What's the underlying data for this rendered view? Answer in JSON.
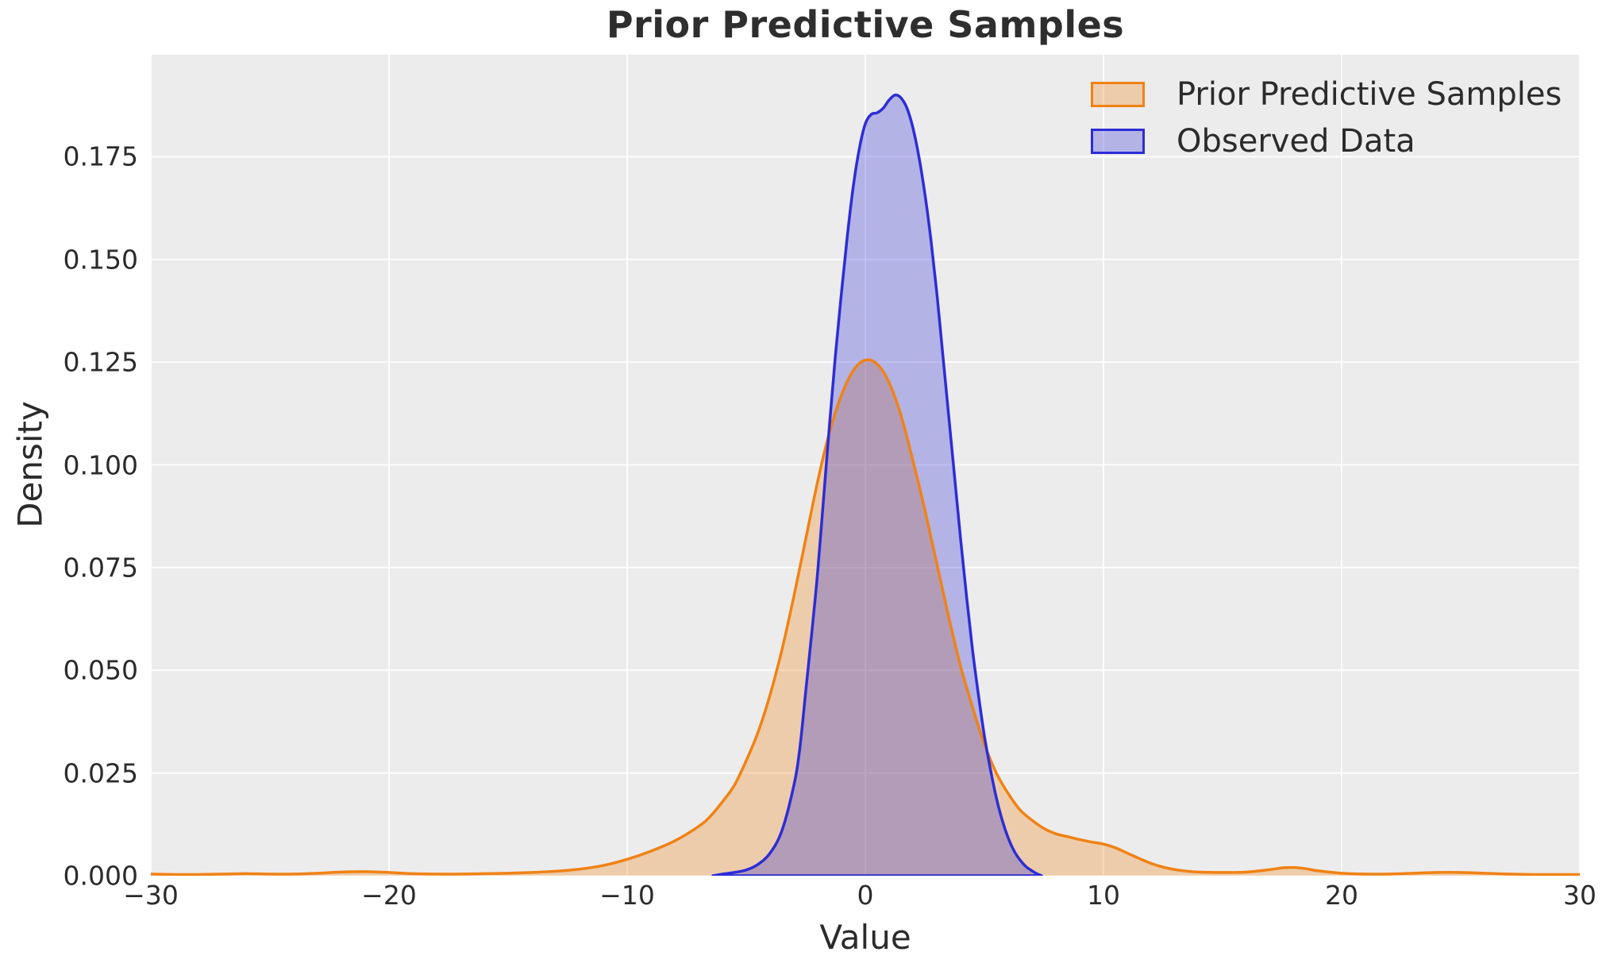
{
  "chart_data": {
    "type": "area",
    "kind": "kde-density-overlay",
    "title": "Prior Predictive Samples",
    "xlabel": "Value",
    "ylabel": "Density",
    "xlim": [
      -30,
      30
    ],
    "ylim": [
      0,
      0.2
    ],
    "grid": true,
    "legend_position": "upper right",
    "colors": {
      "figure_background": "#ffffff",
      "axes_background": "#ececec",
      "gridline": "#ffffff",
      "text": "#2b2b2b"
    },
    "x_ticks": {
      "values": [
        -30,
        -20,
        -10,
        0,
        10,
        20,
        30
      ],
      "labels": [
        "−30",
        "−20",
        "−10",
        "0",
        "10",
        "20",
        "30"
      ]
    },
    "y_ticks": {
      "values": [
        0,
        0.025,
        0.05,
        0.075,
        0.1,
        0.125,
        0.15,
        0.175
      ],
      "labels": [
        "0.000",
        "0.025",
        "0.050",
        "0.075",
        "0.100",
        "0.125",
        "0.150",
        "0.175"
      ]
    },
    "series": [
      {
        "name": "Prior Predictive Samples",
        "color": "#f08214",
        "fill_opacity": 0.3,
        "peak": {
          "x": 0,
          "density": 0.1255
        },
        "baseline_closed": false,
        "points": [
          [
            -30,
            0.0004
          ],
          [
            -29,
            0.0003
          ],
          [
            -28,
            0.0003
          ],
          [
            -27,
            0.0004
          ],
          [
            -26,
            0.0005
          ],
          [
            -25,
            0.0004
          ],
          [
            -24,
            0.0004
          ],
          [
            -23,
            0.0006
          ],
          [
            -22,
            0.0009
          ],
          [
            -21,
            0.001
          ],
          [
            -20,
            0.0008
          ],
          [
            -19,
            0.0005
          ],
          [
            -18,
            0.0004
          ],
          [
            -17,
            0.0004
          ],
          [
            -16,
            0.0005
          ],
          [
            -15,
            0.0006
          ],
          [
            -14,
            0.0008
          ],
          [
            -13,
            0.0011
          ],
          [
            -12,
            0.0016
          ],
          [
            -11,
            0.0025
          ],
          [
            -10,
            0.004
          ],
          [
            -9,
            0.006
          ],
          [
            -8,
            0.0085
          ],
          [
            -7,
            0.012
          ],
          [
            -6.5,
            0.0145
          ],
          [
            -6,
            0.018
          ],
          [
            -5.5,
            0.022
          ],
          [
            -5,
            0.028
          ],
          [
            -4.5,
            0.035
          ],
          [
            -4,
            0.044
          ],
          [
            -3.5,
            0.055
          ],
          [
            -3,
            0.068
          ],
          [
            -2.5,
            0.082
          ],
          [
            -2,
            0.096
          ],
          [
            -1.5,
            0.108
          ],
          [
            -1,
            0.117
          ],
          [
            -0.5,
            0.123
          ],
          [
            0,
            0.1255
          ],
          [
            0.5,
            0.1245
          ],
          [
            1,
            0.12
          ],
          [
            1.5,
            0.112
          ],
          [
            2,
            0.101
          ],
          [
            2.5,
            0.089
          ],
          [
            3,
            0.076
          ],
          [
            3.5,
            0.063
          ],
          [
            4,
            0.051
          ],
          [
            4.5,
            0.041
          ],
          [
            5,
            0.032
          ],
          [
            5.5,
            0.025
          ],
          [
            6,
            0.02
          ],
          [
            6.5,
            0.016
          ],
          [
            7,
            0.0135
          ],
          [
            7.5,
            0.0115
          ],
          [
            8,
            0.0102
          ],
          [
            8.5,
            0.0095
          ],
          [
            9,
            0.0088
          ],
          [
            9.5,
            0.0082
          ],
          [
            10,
            0.0077
          ],
          [
            10.5,
            0.0068
          ],
          [
            11,
            0.0055
          ],
          [
            11.5,
            0.0042
          ],
          [
            12,
            0.003
          ],
          [
            12.5,
            0.0021
          ],
          [
            13,
            0.0015
          ],
          [
            13.5,
            0.0011
          ],
          [
            14,
            0.0009
          ],
          [
            15,
            0.0008
          ],
          [
            16,
            0.0009
          ],
          [
            17,
            0.0015
          ],
          [
            17.5,
            0.0019
          ],
          [
            18,
            0.002
          ],
          [
            18.5,
            0.0017
          ],
          [
            19,
            0.0012
          ],
          [
            20,
            0.0006
          ],
          [
            21,
            0.0004
          ],
          [
            22,
            0.0004
          ],
          [
            23,
            0.0006
          ],
          [
            24,
            0.0008
          ],
          [
            25,
            0.0008
          ],
          [
            26,
            0.0006
          ],
          [
            27,
            0.0004
          ],
          [
            28,
            0.0003
          ],
          [
            29,
            0.0003
          ],
          [
            30,
            0.0003
          ]
        ]
      },
      {
        "name": "Observed Data",
        "color": "#2d2dd6",
        "fill_opacity": 0.3,
        "peak": {
          "x": 1.25,
          "density": 0.19
        },
        "baseline_closed": true,
        "points": [
          [
            -6.4,
            0
          ],
          [
            -6,
            0.0004
          ],
          [
            -5.5,
            0.0008
          ],
          [
            -5,
            0.0014
          ],
          [
            -4.5,
            0.0028
          ],
          [
            -4,
            0.0055
          ],
          [
            -3.5,
            0.011
          ],
          [
            -3,
            0.022
          ],
          [
            -2.75,
            0.031
          ],
          [
            -2.5,
            0.045
          ],
          [
            -2.25,
            0.059
          ],
          [
            -2,
            0.074
          ],
          [
            -1.75,
            0.092
          ],
          [
            -1.5,
            0.11
          ],
          [
            -1.25,
            0.127
          ],
          [
            -1,
            0.142
          ],
          [
            -0.75,
            0.156
          ],
          [
            -0.5,
            0.168
          ],
          [
            -0.25,
            0.177
          ],
          [
            0,
            0.183
          ],
          [
            0.25,
            0.1853
          ],
          [
            0.5,
            0.1857
          ],
          [
            0.75,
            0.1868
          ],
          [
            1,
            0.1888
          ],
          [
            1.25,
            0.19
          ],
          [
            1.5,
            0.1893
          ],
          [
            1.75,
            0.1868
          ],
          [
            2,
            0.182
          ],
          [
            2.25,
            0.175
          ],
          [
            2.5,
            0.166
          ],
          [
            2.75,
            0.155
          ],
          [
            3,
            0.142
          ],
          [
            3.25,
            0.127
          ],
          [
            3.5,
            0.112
          ],
          [
            3.75,
            0.097
          ],
          [
            4,
            0.082
          ],
          [
            4.25,
            0.068
          ],
          [
            4.5,
            0.055
          ],
          [
            4.75,
            0.044
          ],
          [
            5,
            0.034
          ],
          [
            5.25,
            0.026
          ],
          [
            5.5,
            0.019
          ],
          [
            5.75,
            0.0135
          ],
          [
            6,
            0.0092
          ],
          [
            6.25,
            0.006
          ],
          [
            6.5,
            0.0038
          ],
          [
            6.75,
            0.0022
          ],
          [
            7,
            0.0012
          ],
          [
            7.2,
            0.0005
          ],
          [
            7.4,
            0
          ]
        ]
      }
    ]
  }
}
